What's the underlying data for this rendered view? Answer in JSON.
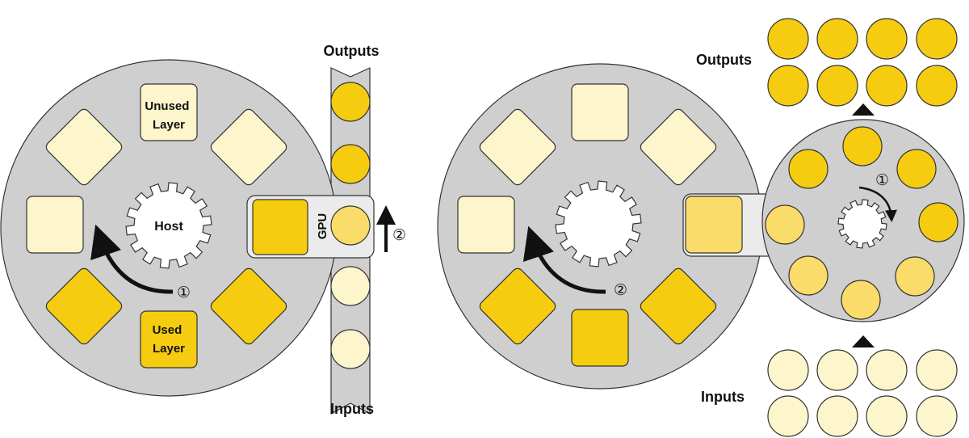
{
  "left_diagram": {
    "outputs_label": "Outputs",
    "inputs_label": "Inputs",
    "host_label": "Host",
    "gpu_label": "GPU",
    "unused_layer_label": [
      "Unused",
      "Layer"
    ],
    "used_layer_label": [
      "Used",
      "Layer"
    ],
    "step_rotate": "①",
    "step_stream": "②"
  },
  "right_diagram": {
    "outputs_label": "Outputs",
    "inputs_label": "Inputs",
    "step_inner_rotate": "①",
    "step_outer_rotate": "②"
  },
  "colors": {
    "wheel_gray": "#cfcfcf",
    "unused_pale": "#fdf5cc",
    "used_gold": "#f6cc10",
    "processing_light": "#f9dc6a",
    "outline": "#333333"
  }
}
